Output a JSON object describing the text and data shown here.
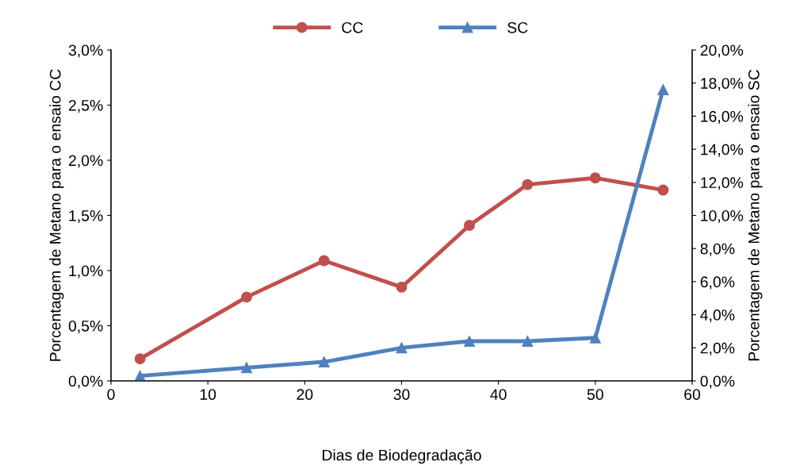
{
  "chart_data": {
    "type": "line",
    "xlabel": "Dias de Biodegradação",
    "ylabel": "Porcentagem de Metano para o ensaio CC",
    "y2label": "Porcentagem de Metano para o ensaio SC",
    "x": [
      3,
      14,
      22,
      30,
      37,
      43,
      50,
      57
    ],
    "series": [
      {
        "name": "CC",
        "color": "#c0504d",
        "marker": "circle",
        "values": [
          0.2,
          0.76,
          1.09,
          0.85,
          1.41,
          1.78,
          1.84,
          1.73
        ]
      },
      {
        "name": "SC",
        "color": "#4f81bd",
        "marker": "triangle",
        "axis": "y2",
        "values": [
          0.3,
          0.8,
          1.15,
          2.0,
          2.4,
          2.4,
          2.6,
          17.6
        ]
      }
    ],
    "xlim": [
      0,
      60
    ],
    "xticks": [
      0,
      10,
      20,
      30,
      40,
      50,
      60
    ],
    "ylim": [
      0,
      3
    ],
    "yticks": [
      {
        "value": 0,
        "label": "0,0%"
      },
      {
        "value": 0.5,
        "label": "0,5%"
      },
      {
        "value": 1,
        "label": "1,0%"
      },
      {
        "value": 1.5,
        "label": "1,5%"
      },
      {
        "value": 2,
        "label": "2,0%"
      },
      {
        "value": 2.5,
        "label": "2,5%"
      },
      {
        "value": 3,
        "label": "3,0%"
      }
    ],
    "y2lim": [
      0,
      20
    ],
    "y2ticks": [
      {
        "value": 0,
        "label": "0,0%"
      },
      {
        "value": 2,
        "label": "2,0%"
      },
      {
        "value": 4,
        "label": "4,0%"
      },
      {
        "value": 6,
        "label": "6,0%"
      },
      {
        "value": 8,
        "label": "8,0%"
      },
      {
        "value": 10,
        "label": "10,0%"
      },
      {
        "value": 12,
        "label": "12,0%"
      },
      {
        "value": 14,
        "label": "14,0%"
      },
      {
        "value": 16,
        "label": "16,0%"
      },
      {
        "value": 18,
        "label": "18,0%"
      },
      {
        "value": 20,
        "label": "20,0%"
      }
    ],
    "grid": false,
    "legend": "top",
    "line_style": "solid"
  }
}
